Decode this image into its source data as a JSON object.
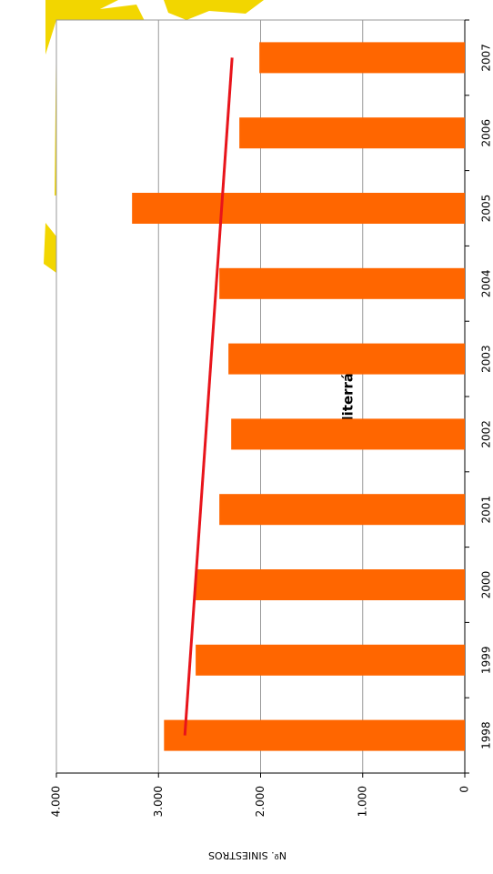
{
  "chart_data": {
    "type": "bar",
    "title": "Mediterráneo",
    "y_axis_label": "Nº. SINIESTROS",
    "categories": [
      "1998",
      "1999",
      "2000",
      "2001",
      "2002",
      "2003",
      "2004",
      "2005",
      "2006",
      "2007"
    ],
    "values": [
      2946,
      2636,
      2636,
      2404,
      2288,
      2315,
      2404,
      3259,
      2208,
      2012
    ],
    "color": "#ff6600",
    "trend_line": {
      "color": "#e8141b",
      "values": [
        2742,
        2279
      ]
    },
    "ylim": [
      0,
      4000
    ],
    "yticks": [
      0,
      {
        "value": 1000,
        "label": "1.000"
      },
      {
        "value": 2000,
        "label": "2.000"
      },
      {
        "value": 3000,
        "label": "3.000"
      },
      {
        "value": 4000,
        "label": "4.000"
      }
    ],
    "grid": true
  }
}
